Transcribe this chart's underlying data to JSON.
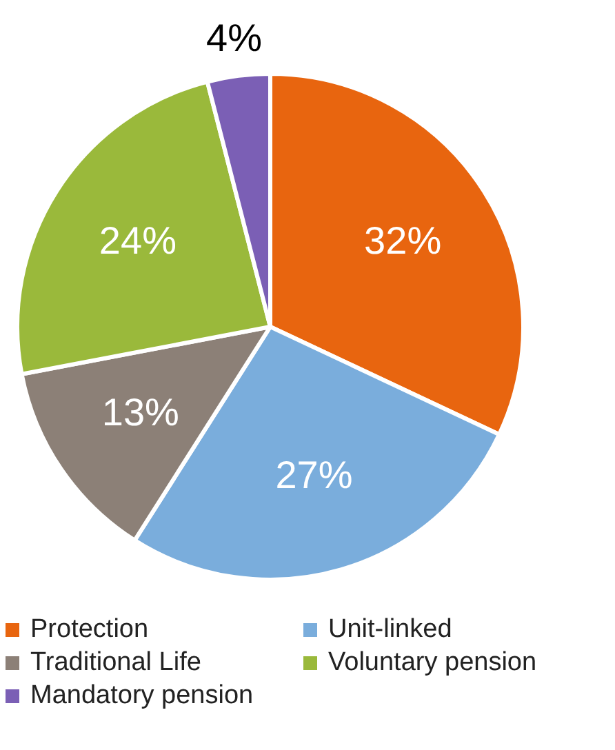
{
  "chart_data": {
    "type": "pie",
    "categories": [
      "Protection",
      "Unit-linked",
      "Traditional Life",
      "Voluntary pension",
      "Mandatory pension"
    ],
    "values": [
      32,
      27,
      13,
      24,
      4
    ],
    "colors": [
      "#e8650f",
      "#7aaddc",
      "#8c8077",
      "#9ab93b",
      "#7b5fb5"
    ],
    "value_labels": [
      "32%",
      "27%",
      "13%",
      "24%",
      "4%"
    ],
    "legend": "bottom"
  }
}
